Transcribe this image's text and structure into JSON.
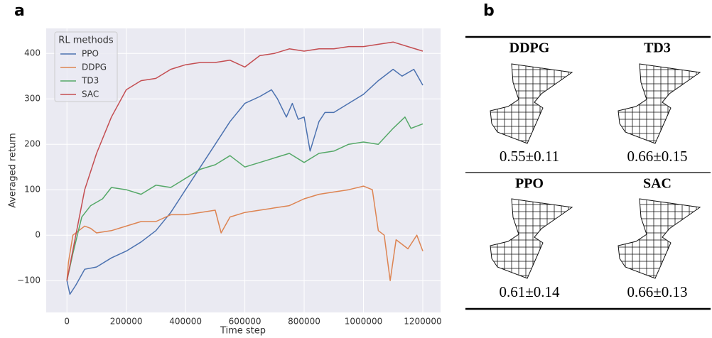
{
  "chart_data": {
    "type": "line",
    "x_label": "Time step",
    "y_label": "Averaged return",
    "legend_title": "RL methods",
    "legend": "upper left",
    "grid": true,
    "xlim": [
      -70000,
      1260000
    ],
    "xticks": [
      0,
      200000,
      400000,
      600000,
      800000,
      1000000,
      1200000
    ],
    "ylim": [
      -170,
      455
    ],
    "yticks": [
      {
        "value": -100,
        "label": "−100"
      },
      0,
      100,
      200,
      300,
      400
    ],
    "series": [
      {
        "name": "PPO",
        "color": "#4c72b0",
        "x": [
          0,
          10000,
          30000,
          60000,
          100000,
          150000,
          200000,
          250000,
          300000,
          350000,
          400000,
          450000,
          500000,
          550000,
          600000,
          650000,
          690000,
          710000,
          740000,
          760000,
          780000,
          800000,
          820000,
          850000,
          870000,
          900000,
          950000,
          1000000,
          1050000,
          1100000,
          1130000,
          1170000,
          1200000
        ],
        "values": [
          -100,
          -130,
          -110,
          -75,
          -70,
          -50,
          -35,
          -15,
          10,
          50,
          100,
          150,
          200,
          250,
          290,
          305,
          320,
          300,
          260,
          290,
          255,
          260,
          185,
          250,
          270,
          270,
          290,
          310,
          340,
          365,
          350,
          365,
          330
        ]
      },
      {
        "name": "DDPG",
        "color": "#dd8452",
        "x": [
          0,
          5000,
          20000,
          40000,
          60000,
          80000,
          100000,
          150000,
          200000,
          250000,
          300000,
          350000,
          400000,
          450000,
          500000,
          520000,
          550000,
          600000,
          650000,
          700000,
          750000,
          800000,
          850000,
          900000,
          950000,
          1000000,
          1030000,
          1050000,
          1070000,
          1090000,
          1110000,
          1130000,
          1150000,
          1180000,
          1200000
        ],
        "values": [
          -100,
          -60,
          0,
          10,
          20,
          15,
          5,
          10,
          20,
          30,
          30,
          45,
          45,
          50,
          55,
          5,
          40,
          50,
          55,
          60,
          65,
          80,
          90,
          95,
          100,
          108,
          100,
          10,
          0,
          -100,
          -10,
          -20,
          -30,
          0,
          -35
        ]
      },
      {
        "name": "TD3",
        "color": "#55a868",
        "x": [
          0,
          20000,
          50000,
          80000,
          120000,
          150000,
          200000,
          250000,
          300000,
          350000,
          400000,
          450000,
          500000,
          550000,
          600000,
          650000,
          700000,
          750000,
          800000,
          850000,
          900000,
          950000,
          1000000,
          1050000,
          1100000,
          1140000,
          1160000,
          1200000
        ],
        "values": [
          -100,
          -40,
          40,
          65,
          80,
          105,
          100,
          90,
          110,
          105,
          125,
          145,
          155,
          175,
          150,
          160,
          170,
          180,
          160,
          180,
          185,
          200,
          205,
          200,
          235,
          260,
          235,
          245
        ]
      },
      {
        "name": "SAC",
        "color": "#c44e52",
        "x": [
          0,
          30000,
          60000,
          100000,
          150000,
          200000,
          250000,
          300000,
          350000,
          400000,
          450000,
          500000,
          550000,
          600000,
          650000,
          700000,
          750000,
          800000,
          850000,
          900000,
          950000,
          1000000,
          1050000,
          1100000,
          1150000,
          1200000
        ],
        "values": [
          -100,
          0,
          100,
          180,
          260,
          320,
          340,
          345,
          365,
          375,
          380,
          380,
          385,
          370,
          395,
          400,
          410,
          405,
          410,
          410,
          415,
          415,
          420,
          425,
          415,
          405
        ]
      }
    ]
  },
  "panel_labels": [
    "a",
    "b"
  ],
  "table": {
    "rows": [
      [
        {
          "name": "DDPG",
          "score": "0.55±0.11"
        },
        {
          "name": "TD3",
          "score": "0.66±0.15"
        }
      ],
      [
        {
          "name": "PPO",
          "score": "0.61±0.14"
        },
        {
          "name": "SAC",
          "score": "0.66±0.13"
        }
      ]
    ]
  }
}
